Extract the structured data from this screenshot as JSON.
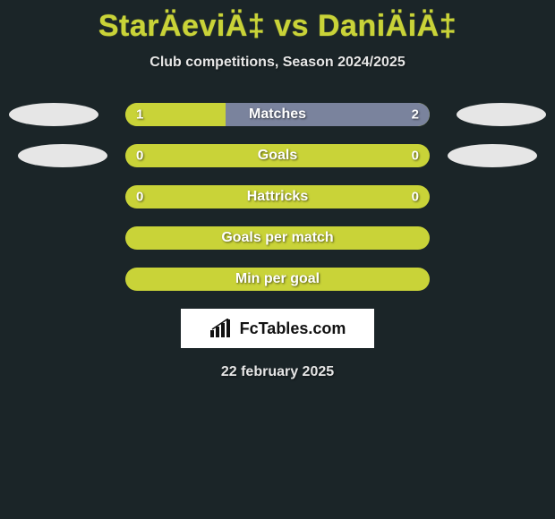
{
  "title": "StarÄeviÄ‡ vs DaniÄiÄ‡",
  "subtitle": "Club competitions, Season 2024/2025",
  "colors": {
    "background": "#1b2528",
    "accent": "#c9d338",
    "bar_bg": "#c9d338",
    "fill_highlight": "#7a839d",
    "ellipse": "#e6e6e6",
    "text_light": "#e6e6e6",
    "text_white": "#ffffff"
  },
  "rows": [
    {
      "label": "Matches",
      "left_value": "1",
      "right_value": "2",
      "show_ellipses": true,
      "ellipse_shift": false,
      "left_fill_pct": 33,
      "right_fill_pct": 67,
      "left_fill_color": "#c9d338",
      "right_fill_color": "#7a839d"
    },
    {
      "label": "Goals",
      "left_value": "0",
      "right_value": "0",
      "show_ellipses": true,
      "ellipse_shift": true,
      "left_fill_pct": 100,
      "right_fill_pct": 0,
      "left_fill_color": "#c9d338",
      "right_fill_color": "#7a839d"
    },
    {
      "label": "Hattricks",
      "left_value": "0",
      "right_value": "0",
      "show_ellipses": false,
      "ellipse_shift": false,
      "left_fill_pct": 100,
      "right_fill_pct": 0,
      "left_fill_color": "#c9d338",
      "right_fill_color": "#7a839d"
    },
    {
      "label": "Goals per match",
      "left_value": "",
      "right_value": "",
      "show_ellipses": false,
      "ellipse_shift": false,
      "left_fill_pct": 100,
      "right_fill_pct": 0,
      "left_fill_color": "#c9d338",
      "right_fill_color": "#7a839d"
    },
    {
      "label": "Min per goal",
      "left_value": "",
      "right_value": "",
      "show_ellipses": false,
      "ellipse_shift": false,
      "left_fill_pct": 100,
      "right_fill_pct": 0,
      "left_fill_color": "#c9d338",
      "right_fill_color": "#7a839d"
    }
  ],
  "badge": {
    "text": "FcTables.com"
  },
  "date": "22 february 2025"
}
